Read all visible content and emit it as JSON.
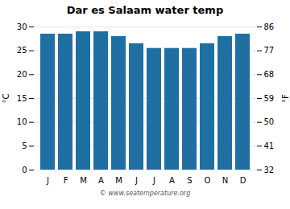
{
  "chart_data": {
    "type": "bar",
    "title": "Dar es Salaam water temp",
    "categories": [
      "J",
      "F",
      "M",
      "A",
      "M",
      "J",
      "J",
      "A",
      "S",
      "O",
      "N",
      "D"
    ],
    "values": [
      28.5,
      28.5,
      29.0,
      29.0,
      28.0,
      26.5,
      25.5,
      25.5,
      25.5,
      26.5,
      28.0,
      28.5
    ],
    "color": "#1f6fa3",
    "ylim": [
      0,
      30
    ],
    "yticks": [
      0,
      5,
      10,
      15,
      20,
      25,
      30
    ],
    "ylabel": "°C",
    "y2lim": [
      32,
      86
    ],
    "y2ticks": [
      32,
      41,
      50,
      59,
      68,
      77,
      86
    ],
    "y2label": "°F",
    "grid": true,
    "caption": "© www.seatemperature.org"
  }
}
